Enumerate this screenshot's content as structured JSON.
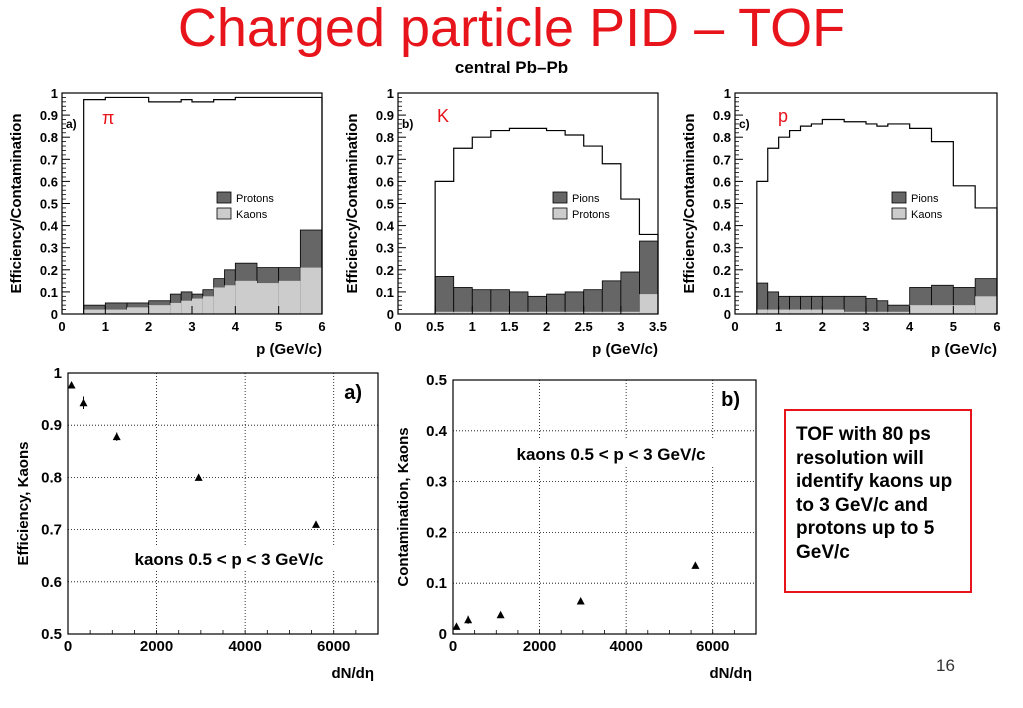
{
  "slide": {
    "title": "Charged particle PID – TOF",
    "subtitle": "central Pb–Pb",
    "callout": "TOF with 80 ps resolution will identify kaons up to 3 GeV/c and protons up to 5 GeV/c",
    "page_number": "16"
  },
  "colors": {
    "dark_fill": "#666666",
    "light_fill": "#cccccc",
    "accent_red": "#e8141b"
  },
  "chart_data": [
    {
      "type": "area",
      "panel_label": "a)",
      "particle": "π",
      "xlabel": "p (GeV/c)",
      "ylabel": "Efficiency/Contamination",
      "xlim": [
        0,
        6
      ],
      "ylim": [
        0,
        1
      ],
      "xticks": [
        "0",
        "1",
        "2",
        "3",
        "4",
        "5",
        "6"
      ],
      "yticks": [
        "0",
        "0.1",
        "0.2",
        "0.3",
        "0.4",
        "0.5",
        "0.6",
        "0.7",
        "0.8",
        "0.9",
        "1"
      ],
      "bin_edges": [
        0.5,
        1.0,
        1.5,
        2.0,
        2.5,
        2.75,
        3.0,
        3.25,
        3.5,
        3.75,
        4.0,
        4.5,
        5.0,
        5.5,
        6.0
      ],
      "efficiency": [
        0.97,
        0.98,
        0.98,
        0.96,
        0.96,
        0.97,
        0.96,
        0.96,
        0.97,
        0.97,
        0.98,
        0.98,
        0.98,
        0.98
      ],
      "series": [
        {
          "name": "Protons",
          "total": [
            0.04,
            0.05,
            0.05,
            0.06,
            0.09,
            0.1,
            0.09,
            0.11,
            0.16,
            0.2,
            0.23,
            0.21,
            0.21,
            0.38
          ]
        },
        {
          "name": "Kaons",
          "values": [
            0.02,
            0.02,
            0.03,
            0.04,
            0.05,
            0.06,
            0.07,
            0.08,
            0.12,
            0.13,
            0.15,
            0.14,
            0.15,
            0.21
          ]
        }
      ],
      "legend": [
        "Protons",
        "Kaons"
      ],
      "legend_position": "right"
    },
    {
      "type": "area",
      "panel_label": "b)",
      "particle": "K",
      "xlabel": "p (GeV/c)",
      "ylabel": "Efficiency/Contamination",
      "xlim": [
        0,
        3.5
      ],
      "ylim": [
        0,
        1
      ],
      "xticks": [
        "0",
        "0.5",
        "1",
        "1.5",
        "2",
        "2.5",
        "3",
        "3.5"
      ],
      "yticks": [
        "0",
        "0.1",
        "0.2",
        "0.3",
        "0.4",
        "0.5",
        "0.6",
        "0.7",
        "0.8",
        "0.9",
        "1"
      ],
      "bin_edges": [
        0.5,
        0.75,
        1.0,
        1.25,
        1.5,
        1.75,
        2.0,
        2.25,
        2.5,
        2.75,
        3.0,
        3.25,
        3.5
      ],
      "efficiency": [
        0.6,
        0.75,
        0.8,
        0.83,
        0.84,
        0.84,
        0.83,
        0.81,
        0.76,
        0.68,
        0.52,
        0.36
      ],
      "series": [
        {
          "name": "Pions",
          "total": [
            0.17,
            0.12,
            0.11,
            0.11,
            0.1,
            0.08,
            0.09,
            0.1,
            0.11,
            0.15,
            0.19,
            0.33
          ]
        },
        {
          "name": "Protons",
          "values": [
            0.01,
            0.01,
            0.01,
            0.01,
            0.01,
            0.01,
            0.01,
            0.01,
            0.01,
            0.01,
            0.01,
            0.09
          ]
        }
      ],
      "legend": [
        "Pions",
        "Protons"
      ],
      "legend_position": "right"
    },
    {
      "type": "area",
      "panel_label": "c)",
      "particle": "p",
      "xlabel": "p (GeV/c)",
      "ylabel": "Efficiency/Contamination",
      "xlim": [
        0,
        6
      ],
      "ylim": [
        0,
        1
      ],
      "xticks": [
        "0",
        "1",
        "2",
        "3",
        "4",
        "5",
        "6"
      ],
      "yticks": [
        "0",
        "0.1",
        "0.2",
        "0.3",
        "0.4",
        "0.5",
        "0.6",
        "0.7",
        "0.8",
        "0.9",
        "1"
      ],
      "bin_edges": [
        0.5,
        0.75,
        1.0,
        1.25,
        1.5,
        1.75,
        2.0,
        2.5,
        3.0,
        3.25,
        3.5,
        4.0,
        4.5,
        5.0,
        5.5,
        6.0
      ],
      "efficiency": [
        0.6,
        0.75,
        0.8,
        0.83,
        0.85,
        0.86,
        0.88,
        0.87,
        0.86,
        0.85,
        0.86,
        0.84,
        0.78,
        0.58,
        0.48
      ],
      "series": [
        {
          "name": "Pions",
          "total": [
            0.14,
            0.1,
            0.08,
            0.08,
            0.08,
            0.08,
            0.08,
            0.08,
            0.07,
            0.06,
            0.04,
            0.12,
            0.13,
            0.12,
            0.16
          ]
        },
        {
          "name": "Kaons",
          "values": [
            0.02,
            0.02,
            0.02,
            0.02,
            0.02,
            0.02,
            0.02,
            0.01,
            0.01,
            0.01,
            0.01,
            0.04,
            0.04,
            0.04,
            0.08
          ]
        }
      ],
      "legend": [
        "Pions",
        "Kaons"
      ],
      "legend_position": "right"
    },
    {
      "type": "scatter",
      "panel_label": "a)",
      "annotation": "kaons 0.5 < p < 3 GeV/c",
      "xlabel": "dN/dη",
      "ylabel": "Efficiency, Kaons",
      "xlim": [
        0,
        7000
      ],
      "ylim": [
        0.5,
        1.0
      ],
      "xticks": [
        "0",
        "2000",
        "4000",
        "6000"
      ],
      "yticks": [
        "0.5",
        "0.6",
        "0.7",
        "0.8",
        "0.9",
        "1"
      ],
      "x": [
        80,
        350,
        1100,
        2950,
        5600
      ],
      "y": [
        0.977,
        0.943,
        0.878,
        0.8,
        0.71
      ],
      "yerr": [
        0.005,
        0.012,
        0.008,
        0.003,
        0.003
      ]
    },
    {
      "type": "scatter",
      "panel_label": "b)",
      "annotation": "kaons 0.5 < p < 3 GeV/c",
      "xlabel": "dN/dη",
      "ylabel": "Contamination, Kaons",
      "xlim": [
        0,
        7000
      ],
      "ylim": [
        0,
        0.5
      ],
      "xticks": [
        "0",
        "2000",
        "4000",
        "6000"
      ],
      "yticks": [
        "0",
        "0.1",
        "0.2",
        "0.3",
        "0.4",
        "0.5"
      ],
      "x": [
        80,
        350,
        1100,
        2950,
        5600
      ],
      "y": [
        0.015,
        0.028,
        0.038,
        0.065,
        0.135
      ],
      "yerr": [
        0.004,
        0.008,
        0.003,
        0.002,
        0.002
      ]
    }
  ]
}
